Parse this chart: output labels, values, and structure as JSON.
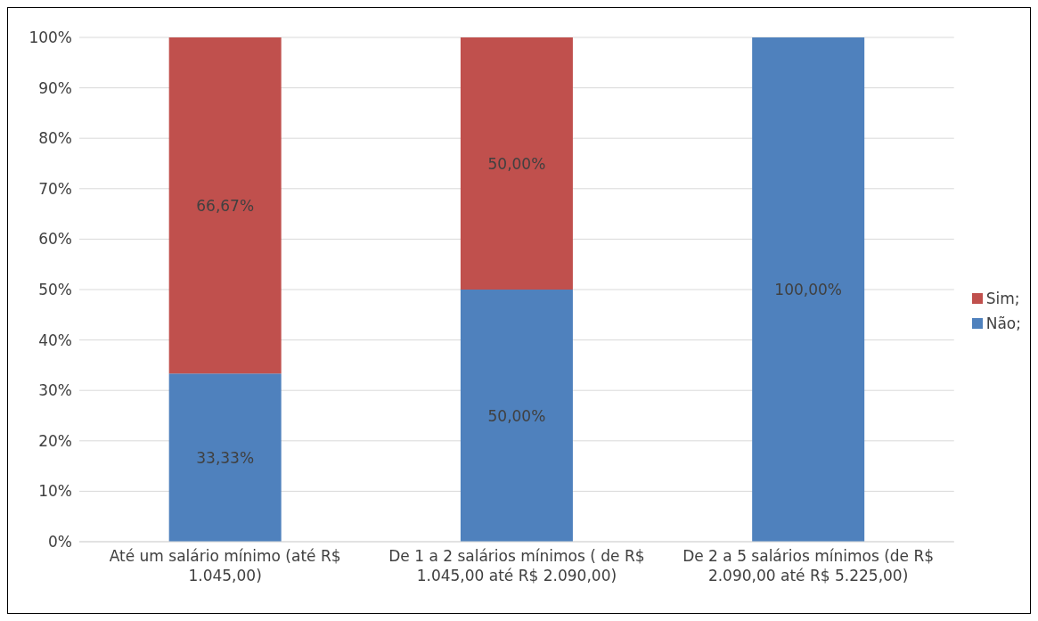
{
  "chart_data": {
    "type": "bar",
    "stacked": true,
    "categories": [
      "Até um salário mínimo (até R$ 1.045,00)",
      "De 1 a 2 salários mínimos ( de R$ 1.045,00 até R$ 2.090,00)",
      "De 2 a 5 salários mínimos (de R$ 2.090,00 até R$ 5.225,00)"
    ],
    "series": [
      {
        "name": "Não;",
        "color": "#4f81bd",
        "values": [
          33.33,
          50,
          100
        ],
        "value_labels": [
          "33,33%",
          "50,00%",
          "100,00%"
        ]
      },
      {
        "name": "Sim;",
        "color": "#c0504d",
        "values": [
          66.67,
          50,
          0
        ],
        "value_labels": [
          "66,67%",
          "50,00%",
          null
        ]
      }
    ],
    "ylim": [
      0,
      100
    ],
    "yticks": [
      {
        "value": 0,
        "label": "0%"
      },
      {
        "value": 10,
        "label": "10%"
      },
      {
        "value": 20,
        "label": "20%"
      },
      {
        "value": 30,
        "label": "30%"
      },
      {
        "value": 40,
        "label": "40%"
      },
      {
        "value": 50,
        "label": "50%"
      },
      {
        "value": 60,
        "label": "60%"
      },
      {
        "value": 70,
        "label": "70%"
      },
      {
        "value": 80,
        "label": "80%"
      },
      {
        "value": 90,
        "label": "90%"
      },
      {
        "value": 100,
        "label": "100%"
      }
    ],
    "grid": "y",
    "legend": "right"
  }
}
